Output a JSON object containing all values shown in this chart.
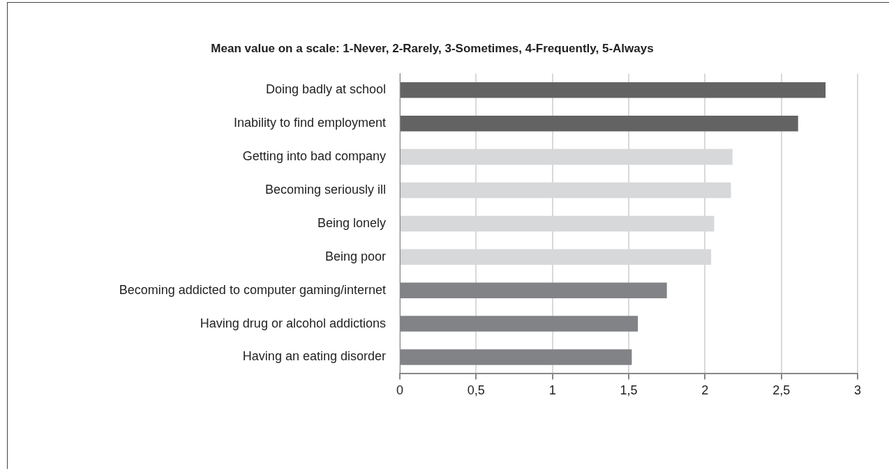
{
  "chart_data": {
    "type": "bar",
    "orientation": "horizontal",
    "title": "Mean value on a scale: 1-Never, 2-Rarely, 3-Sometimes, 4-Frequently, 5-Always",
    "categories": [
      "Doing badly at school",
      "Inability to find employment",
      "Getting into bad company",
      "Becoming seriously ill",
      "Being lonely",
      "Being poor",
      "Becoming addicted to computer gaming/internet",
      "Having drug or alcohol addictions",
      "Having an eating disorder"
    ],
    "values": [
      2.79,
      2.61,
      2.18,
      2.17,
      2.06,
      2.04,
      1.75,
      1.56,
      1.52
    ],
    "colors": [
      "#636363",
      "#636363",
      "#d7d8da",
      "#d7d8da",
      "#d7d8da",
      "#d7d8da",
      "#828386",
      "#828386",
      "#828386"
    ],
    "xlim": [
      0,
      3
    ],
    "xticks": [
      0,
      {
        "value": 0.5,
        "label": "0,5"
      },
      1,
      {
        "value": 1.5,
        "label": "1,5"
      },
      2,
      {
        "value": 2.5,
        "label": "2,5"
      },
      3
    ],
    "grid": "x"
  }
}
